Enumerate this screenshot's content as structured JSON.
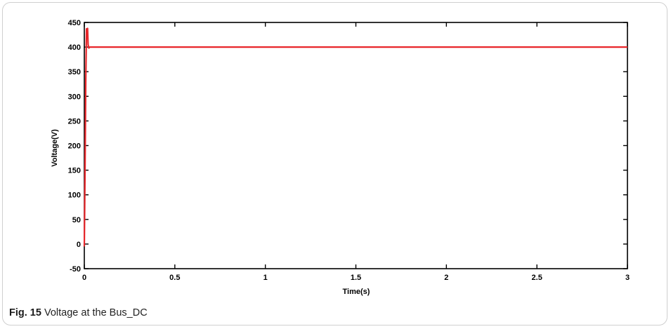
{
  "figure": {
    "caption_label": "Fig. 15",
    "caption_text": "Voltage at the Bus_DC"
  },
  "chart_data": {
    "type": "line",
    "title": "",
    "xlabel": "Time(s)",
    "ylabel": "Voltage(V)",
    "xlim": [
      0,
      3
    ],
    "ylim": [
      -50,
      450
    ],
    "xticks": [
      0,
      0.5,
      1,
      1.5,
      2,
      2.5,
      3
    ],
    "yticks": [
      -50,
      0,
      50,
      100,
      150,
      200,
      250,
      300,
      350,
      400,
      450
    ],
    "grid": false,
    "legend": "none",
    "series": [
      {
        "color": "#e8262a",
        "x": [
          0,
          0.004,
          0.008,
          0.012,
          0.015,
          0.018,
          0.021,
          0.025,
          0.03,
          0.04,
          0.06,
          0.1,
          0.5,
          1,
          1.5,
          2,
          2.5,
          3
        ],
        "y": [
          -5,
          150,
          330,
          437,
          420,
          438,
          405,
          398,
          400,
          400,
          400,
          400,
          400,
          400,
          400,
          400,
          400,
          400
        ]
      }
    ]
  }
}
